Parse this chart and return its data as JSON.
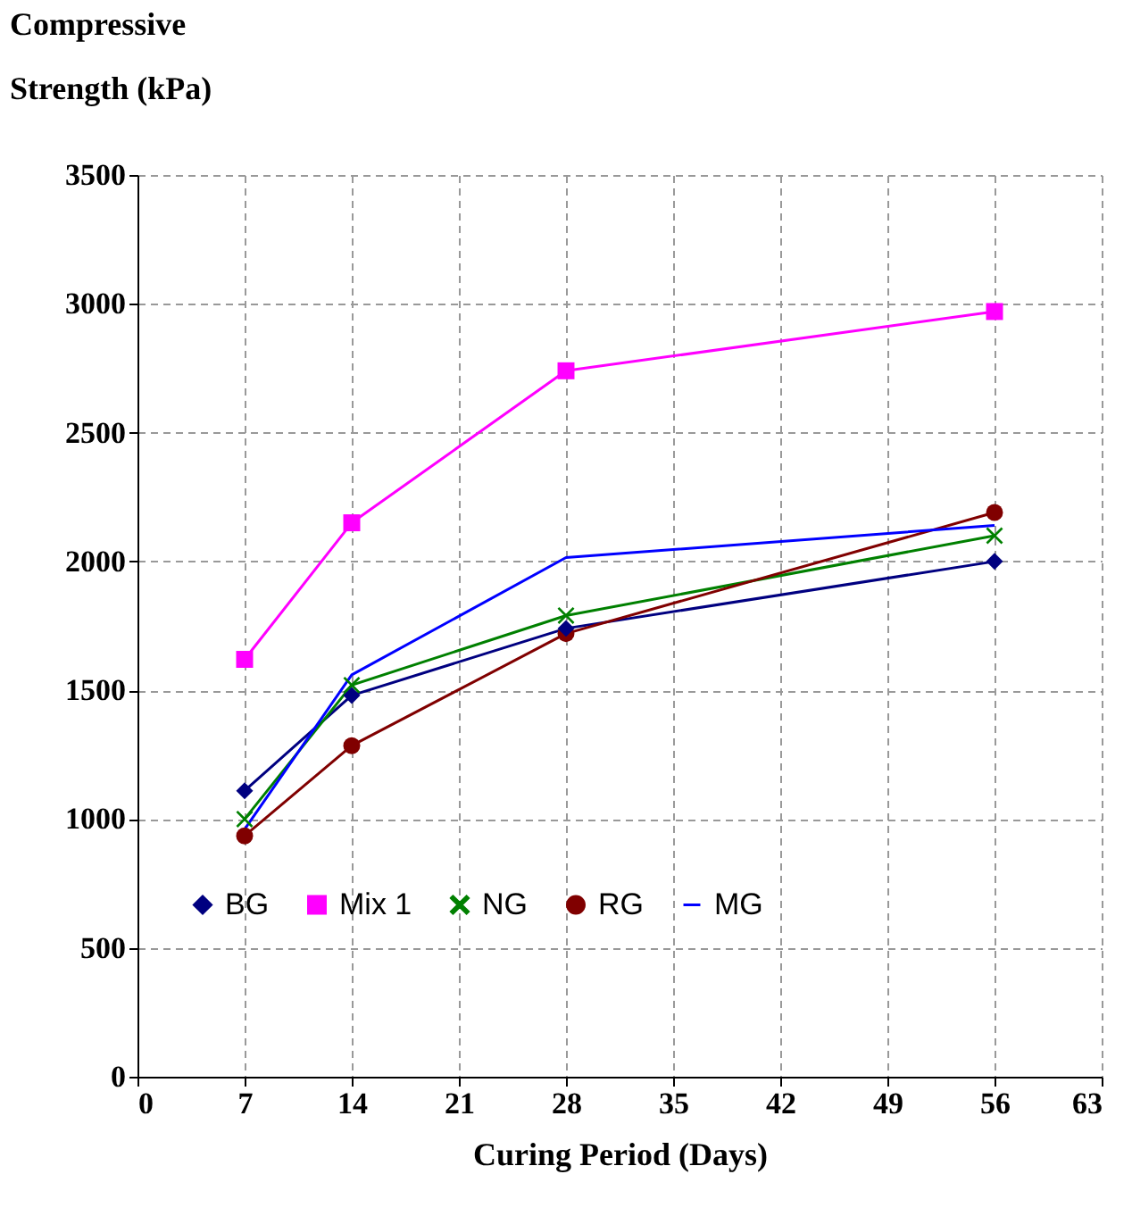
{
  "chart_data": {
    "type": "line",
    "xlabel": "Curing Period (Days)",
    "ylabel": "Compressive Strength (kPa)",
    "x": [
      7,
      14,
      28,
      56
    ],
    "series": [
      {
        "name": "BG",
        "color": "#000080",
        "marker": "diamond",
        "values": [
          1110,
          1480,
          1740,
          2000
        ]
      },
      {
        "name": "Mix 1",
        "color": "#ff00ff",
        "marker": "square",
        "values": [
          1620,
          2150,
          2740,
          2970
        ]
      },
      {
        "name": "NG",
        "color": "#008000",
        "marker": "cross",
        "values": [
          1000,
          1520,
          1790,
          2100
        ]
      },
      {
        "name": "RG",
        "color": "#800000",
        "marker": "circle",
        "values": [
          935,
          1285,
          1720,
          2190
        ]
      },
      {
        "name": "MG",
        "color": "#0000ff",
        "marker": "none",
        "values": [
          960,
          1560,
          2015,
          2140
        ]
      }
    ],
    "xlim": [
      0,
      63
    ],
    "xticks": [
      0,
      7,
      14,
      21,
      28,
      35,
      42,
      49,
      56,
      63
    ],
    "ylim": [
      0,
      3500
    ],
    "yticks": [
      0,
      500,
      1000,
      1500,
      2000,
      2500,
      3000,
      3500
    ],
    "grid": true,
    "legend": "bottom",
    "line_style": "solid"
  }
}
